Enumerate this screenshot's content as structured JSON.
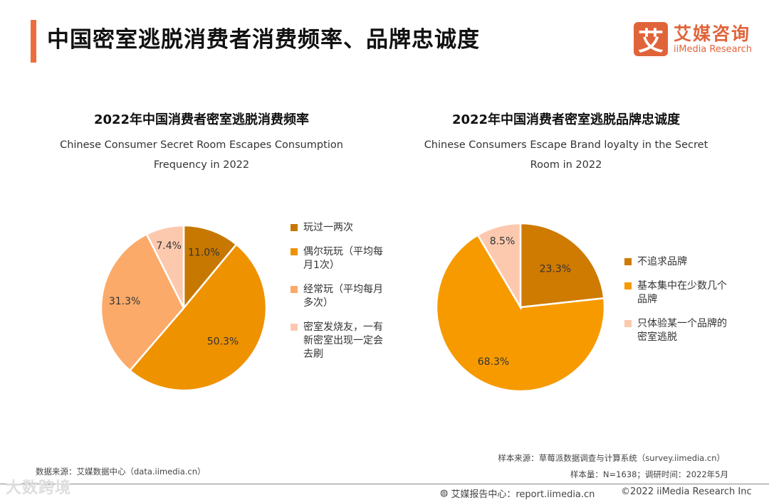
{
  "header": {
    "title": "中国密室逃脱消费者消费频率、品牌忠诚度"
  },
  "logo": {
    "glyph": "艾",
    "cn": "艾媒咨询",
    "en": "iiMedia Research"
  },
  "colors": {
    "accent": "#ec6d3b",
    "brand": "#e0643a"
  },
  "chart_data": [
    {
      "type": "pie",
      "title": "2022年中国消费者密室逃脱消费频率",
      "subtitle": [
        "Chinese Consumer Secret Room Escapes Consumption",
        "Frequency in 2022"
      ],
      "slices": [
        {
          "label": "玩过一两次",
          "value": 11.0,
          "display": "11.0%",
          "color": "#c77800"
        },
        {
          "label": "偶尔玩玩（平均每月1次）",
          "lines": [
            "偶尔玩玩（平均每",
            "月1次）"
          ],
          "value": 50.3,
          "display": "50.3%",
          "color": "#ee9200"
        },
        {
          "label": "经常玩（平均每月多次）",
          "lines": [
            "经常玩（平均每月",
            "多次）"
          ],
          "value": 31.3,
          "display": "31.3%",
          "color": "#fbaa6a"
        },
        {
          "label": "密室发烧友，一有新密室出现一定会去刷",
          "lines": [
            "密室发烧友，一有",
            "新密室出现一定会",
            "去刷"
          ],
          "value": 7.4,
          "display": "7.4%",
          "color": "#fcc9ae"
        }
      ],
      "legend": "right"
    },
    {
      "type": "pie",
      "title": "2022年中国消费者密室逃脱品牌忠诚度",
      "subtitle": [
        "Chinese Consumers Escape Brand loyalty in the Secret",
        "Room in 2022"
      ],
      "slices": [
        {
          "label": "不追求品牌",
          "lines": [
            "不追求品牌"
          ],
          "value": 23.3,
          "display": "23.3%",
          "color": "#cf7a00"
        },
        {
          "label": "基本集中在少数几个品牌",
          "lines": [
            "基本集中在少数几个",
            "品牌"
          ],
          "value": 68.3,
          "display": "68.3%",
          "color": "#f79a00"
        },
        {
          "label": "只体验某一个品牌的密室逃脱",
          "lines": [
            "只体验某一个品牌的",
            "密室逃脱"
          ],
          "value": 8.5,
          "display": "8.5%",
          "color": "#fcc9ae"
        }
      ],
      "legend": "right"
    }
  ],
  "footer": {
    "data_source": "数据来源：艾媒数据中心（data.iimedia.cn）",
    "sample_source": "样本来源：草莓派数据调查与计算系统（survey.iimedia.cn）",
    "sample_size": "样本量：N=1638；调研时间：2022年5月",
    "report_center": "艾媒报告中心：report.iimedia.cn",
    "copyright": "©2022  iiMedia Research  Inc",
    "watermark": "大数跨境"
  }
}
